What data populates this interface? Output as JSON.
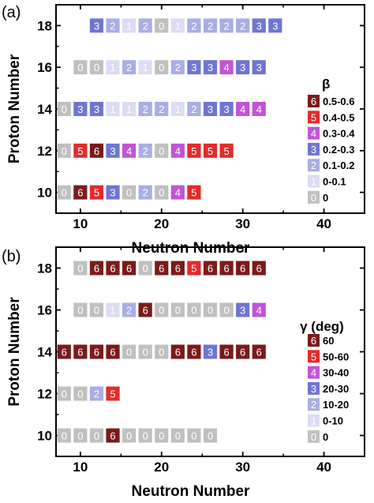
{
  "chart_data": [
    {
      "type": "heatmap",
      "panel_label": "(a)",
      "xlabel": "Neutron Number",
      "ylabel": "Proton Number",
      "xlim": [
        7,
        45
      ],
      "ylim": [
        9,
        19
      ],
      "x_ticks": [
        "10",
        "20",
        "30",
        "40"
      ],
      "y_ticks": [
        "10",
        "12",
        "14",
        "16",
        "18"
      ],
      "legend_title": "β",
      "legend": [
        {
          "code": "6",
          "label": "0.5-0.6",
          "color": "#7b1a1a"
        },
        {
          "code": "5",
          "label": "0.4-0.5",
          "color": "#e32b2b"
        },
        {
          "code": "4",
          "label": "0.3-0.4",
          "color": "#c254d6"
        },
        {
          "code": "3",
          "label": "0.2-0.3",
          "color": "#6f75d1"
        },
        {
          "code": "2",
          "label": "0.1-0.2",
          "color": "#a9aee3"
        },
        {
          "code": "1",
          "label": "0-0.1",
          "color": "#dcdcf4"
        },
        {
          "code": "0",
          "label": "0",
          "color": "#c0c0c0"
        }
      ],
      "rows": [
        {
          "z": 10,
          "n_start": 8,
          "values": [
            0,
            6,
            5,
            3,
            0,
            2,
            0,
            4,
            5
          ]
        },
        {
          "z": 12,
          "n_start": 8,
          "values": [
            0,
            5,
            6,
            3,
            4,
            2,
            0,
            4,
            5,
            5,
            5
          ]
        },
        {
          "z": 14,
          "n_start": 8,
          "values": [
            0,
            3,
            3,
            1,
            1,
            2,
            2,
            1,
            2,
            3,
            3,
            4,
            4
          ]
        },
        {
          "z": 16,
          "n_start": 10,
          "values": [
            0,
            0,
            1,
            2,
            1,
            0,
            2,
            3,
            3,
            4,
            3,
            3
          ]
        },
        {
          "z": 18,
          "n_start": 12,
          "values": [
            3,
            2,
            1,
            2,
            0,
            1,
            2,
            2,
            2,
            2,
            3,
            3
          ]
        }
      ]
    },
    {
      "type": "heatmap",
      "panel_label": "(b)",
      "xlabel": "Neutron Number",
      "ylabel": "Proton Number",
      "xlim": [
        7,
        45
      ],
      "ylim": [
        9,
        19
      ],
      "x_ticks": [
        "10",
        "20",
        "30",
        "40"
      ],
      "y_ticks": [
        "10",
        "12",
        "14",
        "16",
        "18"
      ],
      "legend_title": "γ (deg)",
      "legend": [
        {
          "code": "6",
          "label": "60",
          "color": "#7b1a1a"
        },
        {
          "code": "5",
          "label": "50-60",
          "color": "#e32b2b"
        },
        {
          "code": "4",
          "label": "30-40",
          "color": "#c254d6"
        },
        {
          "code": "3",
          "label": "20-30",
          "color": "#6f75d1"
        },
        {
          "code": "2",
          "label": "10-20",
          "color": "#a9aee3"
        },
        {
          "code": "1",
          "label": "0-10",
          "color": "#dcdcf4"
        },
        {
          "code": "0",
          "label": "0",
          "color": "#c0c0c0"
        }
      ],
      "rows": [
        {
          "z": 10,
          "n_start": 8,
          "values": [
            0,
            0,
            0,
            6,
            0,
            0,
            0,
            0,
            0,
            0
          ]
        },
        {
          "z": 12,
          "n_start": 8,
          "values": [
            0,
            0,
            2,
            5
          ]
        },
        {
          "z": 14,
          "n_start": 8,
          "values": [
            6,
            6,
            6,
            6,
            0,
            0,
            0,
            6,
            6,
            3,
            6,
            6,
            6
          ]
        },
        {
          "z": 16,
          "n_start": 10,
          "values": [
            0,
            0,
            1,
            2,
            6,
            0,
            0,
            0,
            0,
            0,
            3,
            4
          ]
        },
        {
          "z": 18,
          "n_start": 10,
          "values": [
            0,
            6,
            6,
            6,
            0,
            6,
            6,
            5,
            6,
            6,
            6,
            6
          ]
        }
      ]
    }
  ]
}
